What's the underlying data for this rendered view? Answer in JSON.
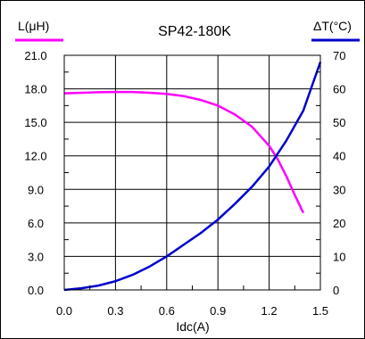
{
  "chart_data": {
    "type": "line",
    "title": "SP42-180K",
    "xlabel": "Idc(A)",
    "ylabel_left": "L(μH)",
    "ylabel_right": "ΔT(°C)",
    "x_ticks": [
      "0.0",
      "0.3",
      "0.6",
      "0.9",
      "1.2",
      "1.5"
    ],
    "y_left_ticks": [
      "0.0",
      "3.0",
      "6.0",
      "9.0",
      "12.0",
      "15.0",
      "18.0",
      "21.0"
    ],
    "y_right_ticks": [
      "0",
      "10",
      "20",
      "30",
      "40",
      "50",
      "60",
      "70"
    ],
    "xlim": [
      0,
      1.5
    ],
    "ylim_left": [
      0,
      21
    ],
    "ylim_right": [
      0,
      70
    ],
    "grid": true,
    "series": [
      {
        "name": "L(μH)",
        "axis": "left",
        "color": "#ff00ff",
        "x": [
          0.0,
          0.1,
          0.2,
          0.3,
          0.4,
          0.5,
          0.6,
          0.7,
          0.8,
          0.9,
          1.0,
          1.1,
          1.2,
          1.25,
          1.3,
          1.35,
          1.4
        ],
        "y": [
          17.6,
          17.65,
          17.7,
          17.72,
          17.72,
          17.65,
          17.55,
          17.35,
          17.0,
          16.5,
          15.7,
          14.6,
          12.9,
          11.7,
          10.2,
          8.5,
          6.9
        ]
      },
      {
        "name": "ΔT(°C)",
        "axis": "right",
        "color": "#0000cc",
        "x": [
          0.0,
          0.1,
          0.2,
          0.3,
          0.4,
          0.5,
          0.6,
          0.7,
          0.8,
          0.9,
          1.0,
          1.1,
          1.2,
          1.3,
          1.4,
          1.5
        ],
        "y": [
          0,
          0.5,
          1.3,
          2.6,
          4.5,
          7.0,
          10.0,
          13.5,
          17.0,
          21.0,
          25.7,
          30.8,
          36.8,
          44.5,
          53.5,
          68.0
        ]
      }
    ]
  }
}
